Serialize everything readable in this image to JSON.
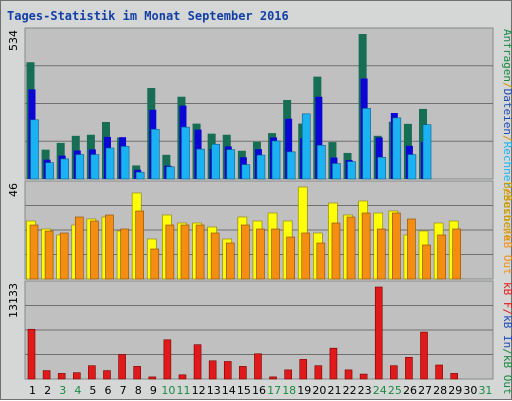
{
  "title": "Tages-Statistik im Monat September 2016",
  "colors": {
    "panel_bg": "#c0c0c0",
    "frame_bg": "#d5d7d6",
    "title": "#123fa6",
    "grid": "#707070",
    "anfragen": "#176e55",
    "dateien": "#0b05d6",
    "rechner": "#1bb2f4",
    "besuche": "#fefe08",
    "kb_out": "#f38e12",
    "kb_in": "#1e4bb8",
    "kb_f": "#e0191a",
    "weekend_label": "#1a8a43",
    "weekday_label": "#000000",
    "side_green": "#1a8a43",
    "side_blue": "#1e4bb8",
    "side_cyan": "#1bb2f4",
    "side_yellow": "#cc9a00",
    "side_orange": "#f38e12",
    "side_red": "#e0191a"
  },
  "chart_data": [
    {
      "type": "bar",
      "panel": "top",
      "y_label": "534",
      "ylim": [
        0,
        534
      ],
      "categories": [
        "1",
        "2",
        "3",
        "4",
        "5",
        "6",
        "7",
        "8",
        "9",
        "10",
        "11",
        "12",
        "13",
        "14",
        "15",
        "16",
        "17",
        "18",
        "19",
        "20",
        "21",
        "22",
        "23",
        "24",
        "25",
        "26",
        "27",
        "28",
        "29",
        "30",
        "31"
      ],
      "series": [
        {
          "name": "Anfragen",
          "values": [
            430,
            108,
            133,
            159,
            163,
            210,
            153,
            50,
            335,
            89,
            303,
            204,
            167,
            163,
            104,
            137,
            169,
            291,
            204,
            377,
            136,
            96,
            534,
            159,
            211,
            203,
            258,
            null,
            null,
            null,
            null
          ]
        },
        {
          "name": "Dateien",
          "values": [
            330,
            71,
            86,
            105,
            109,
            155,
            154,
            34,
            255,
            49,
            270,
            182,
            111,
            120,
            80,
            110,
            153,
            222,
            150,
            303,
            79,
            70,
            370,
            153,
            243,
            122,
            137,
            null,
            null,
            null,
            null
          ]
        },
        {
          "name": "Rechner",
          "values": [
            218,
            60,
            74,
            90,
            90,
            114,
            120,
            25,
            183,
            45,
            191,
            110,
            128,
            108,
            53,
            88,
            140,
            100,
            240,
            124,
            57,
            64,
            260,
            80,
            225,
            90,
            200,
            null,
            null,
            null,
            null
          ]
        }
      ]
    },
    {
      "type": "bar",
      "panel": "middle",
      "y_label": "46",
      "categories": [
        "1",
        "2",
        "3",
        "4",
        "5",
        "6",
        "7",
        "8",
        "9",
        "10",
        "11",
        "12",
        "13",
        "14",
        "15",
        "16",
        "17",
        "18",
        "19",
        "20",
        "21",
        "22",
        "23",
        "24",
        "25",
        "26",
        "27",
        "28",
        "29",
        "30",
        "31"
      ],
      "series": [
        {
          "name": "Rechner",
          "values": [
            29,
            25,
            22,
            27,
            30,
            31,
            24,
            43,
            20,
            32,
            28,
            28,
            26,
            20,
            31,
            29,
            33,
            29,
            46,
            23,
            38,
            32,
            39,
            33,
            34,
            22,
            24,
            28,
            29,
            28,
            28
          ]
        },
        {
          "name": "kB Out",
          "values": [
            27,
            24,
            23,
            31,
            29,
            32,
            25,
            34,
            15,
            27,
            27,
            27,
            23,
            18,
            27,
            25,
            25,
            21,
            23,
            18,
            28,
            31,
            33,
            25,
            33,
            30,
            17,
            22,
            25,
            26,
            26
          ]
        }
      ]
    },
    {
      "type": "bar",
      "panel": "bottom",
      "y_label": "13133",
      "categories": [
        "1",
        "2",
        "3",
        "4",
        "5",
        "6",
        "7",
        "8",
        "9",
        "10",
        "11",
        "12",
        "13",
        "14",
        "15",
        "16",
        "17",
        "18",
        "19",
        "20",
        "21",
        "22",
        "23",
        "24",
        "25",
        "26",
        "27",
        "28",
        "29",
        "30",
        "31"
      ],
      "series": [
        {
          "name": "kB F",
          "values": [
            7100,
            1200,
            800,
            900,
            1900,
            1200,
            3500,
            1800,
            300,
            5600,
            600,
            4900,
            2600,
            2500,
            1800,
            3600,
            300,
            1300,
            2800,
            1900,
            4400,
            1300,
            700,
            13133,
            1900,
            3100,
            6700,
            2000,
            800,
            null,
            null
          ]
        }
      ]
    }
  ],
  "weekend_days": [
    3,
    4,
    10,
    11,
    17,
    18,
    24,
    25,
    31
  ],
  "side_labels": {
    "top": [
      {
        "text": "Anfragen",
        "color_key": "side_green"
      },
      {
        "text": "/",
        "color_key": "side_yellow"
      },
      {
        "text": "Dateien",
        "color_key": "side_blue"
      },
      {
        "text": "/",
        "color_key": "side_yellow"
      },
      {
        "text": "Rechner",
        "color_key": "side_cyan"
      },
      {
        "text": "/",
        "color_key": "side_yellow"
      },
      {
        "text": "Besuche",
        "color_key": "side_yellow"
      }
    ],
    "middle": [
      {
        "text": "Besuche",
        "color_key": "side_yellow"
      },
      {
        "text": "/",
        "color_key": "side_orange"
      },
      {
        "text": "kB Out",
        "color_key": "side_orange"
      }
    ],
    "bottom": [
      {
        "text": "kB F",
        "color_key": "side_red"
      },
      {
        "text": "/",
        "color_key": "side_red"
      },
      {
        "text": "kB In",
        "color_key": "side_blue"
      },
      {
        "text": "/",
        "color_key": "side_green"
      },
      {
        "text": "kB Out",
        "color_key": "side_green"
      }
    ]
  }
}
